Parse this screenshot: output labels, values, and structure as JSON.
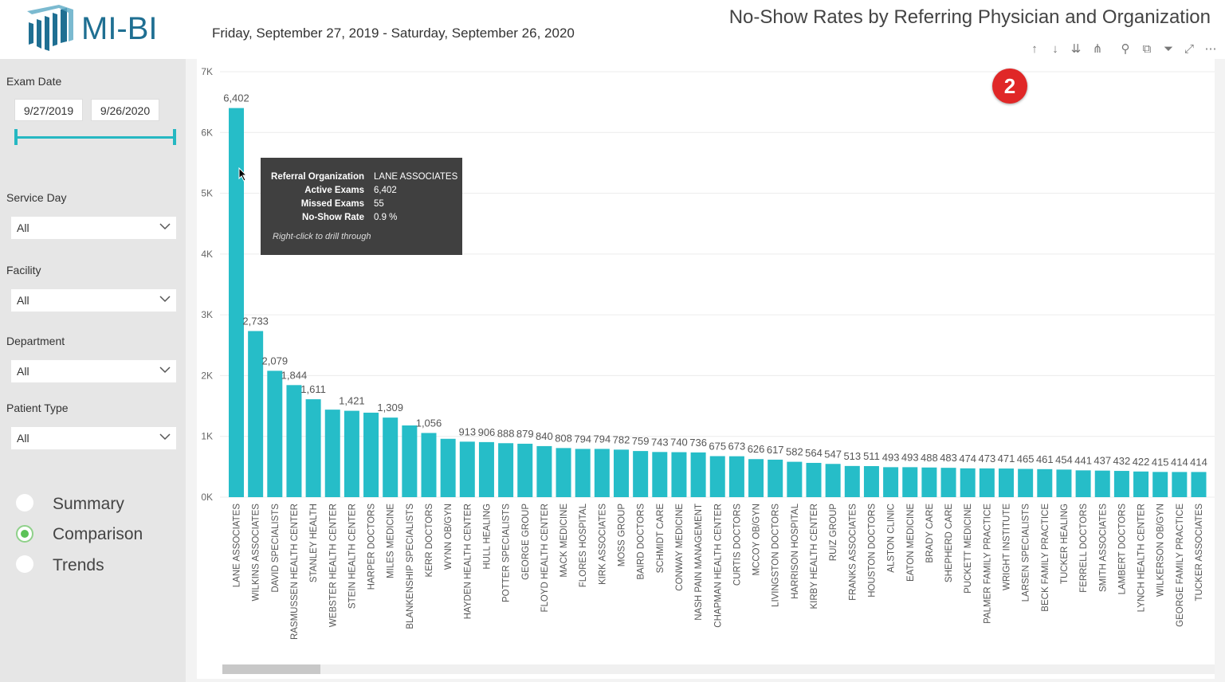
{
  "header": {
    "logo_text": "MI-BI",
    "date_range": "Friday, September 27, 2019 - Saturday, September 26, 2020",
    "title": "No-Show Rates by Referring Physician and Organization"
  },
  "filters": {
    "exam_date": {
      "label": "Exam Date",
      "start": "9/27/2019",
      "end": "9/26/2020"
    },
    "service_day": {
      "label": "Service Day",
      "value": "All"
    },
    "facility": {
      "label": "Facility",
      "value": "All"
    },
    "department": {
      "label": "Department",
      "value": "All"
    },
    "patient_type": {
      "label": "Patient Type",
      "value": "All"
    }
  },
  "views": [
    {
      "label": "Summary",
      "selected": false
    },
    {
      "label": "Comparison",
      "selected": true
    },
    {
      "label": "Trends",
      "selected": false
    }
  ],
  "toolbar_icons": [
    "drill-up-icon",
    "drill-down-icon",
    "expand-all-icon",
    "hierarchy-icon",
    "pin-icon",
    "copy-icon",
    "filter-icon",
    "focus-mode-icon",
    "more-options-icon"
  ],
  "badge": "2",
  "tooltip": {
    "rows": [
      {
        "key": "Referral Organization",
        "value": "LANE ASSOCIATES"
      },
      {
        "key": "Active Exams",
        "value": "6,402"
      },
      {
        "key": "Missed Exams",
        "value": "55"
      },
      {
        "key": "No-Show Rate",
        "value": "0.9 %"
      }
    ],
    "footer": "Right-click to drill through"
  },
  "colors": {
    "bar": "#26bdc8",
    "accent": "#26b8c2",
    "badge": "#e02727"
  },
  "chart_data": {
    "type": "bar",
    "title": "",
    "xlabel": "",
    "ylabel": "",
    "ylim": [
      0,
      7000
    ],
    "yticks": [
      "0K",
      "1K",
      "2K",
      "3K",
      "4K",
      "5K",
      "6K",
      "7K"
    ],
    "grid": true,
    "categories": [
      "LANE ASSOCIATES",
      "WILKINS ASSOCIATES",
      "DAVID SPECIALISTS",
      "RASMUSSEN HEALTH CENTER",
      "STANLEY HEALTH",
      "WEBSTER HEALTH CENTER",
      "STEIN HEALTH CENTER",
      "HARPER DOCTORS",
      "MILES MEDICINE",
      "BLANKENSHIP SPECIALISTS",
      "KERR DOCTORS",
      "WYNN OB/GYN",
      "HAYDEN HEALTH CENTER",
      "HULL HEALING",
      "POTTER SPECIALISTS",
      "GEORGE GROUP",
      "FLOYD HEALTH CENTER",
      "MACK MEDICINE",
      "FLORES HOSPITAL",
      "KIRK ASSOCIATES",
      "MOSS GROUP",
      "BAIRD DOCTORS",
      "SCHMIDT CARE",
      "CONWAY MEDICINE",
      "NASH PAIN MANAGEMENT",
      "CHAPMAN HEALTH CENTER",
      "CURTIS DOCTORS",
      "MCCOY OB/GYN",
      "LIVINGSTON DOCTORS",
      "HARRISON HOSPITAL",
      "KIRBY HEALTH CENTER",
      "RUIZ GROUP",
      "FRANKS ASSOCIATES",
      "HOUSTON DOCTORS",
      "ALSTON CLINIC",
      "EATON MEDICINE",
      "BRADY CARE",
      "SHEPHERD CARE",
      "PUCKETT MEDICINE",
      "PALMER FAMILY PRACTICE",
      "WRIGHT INSTITUTE",
      "LARSEN SPECIALISTS",
      "BECK FAMILY PRACTICE",
      "TUCKER HEALING",
      "FERRELL DOCTORS",
      "SMITH ASSOCIATES",
      "LAMBERT DOCTORS",
      "LYNCH HEALTH CENTER",
      "WILKERSON OB/GYN",
      "GEORGE FAMILY PRACTICE",
      "TUCKER ASSOCIATES"
    ],
    "values": [
      6402,
      2733,
      2079,
      1844,
      1611,
      1440,
      1421,
      1390,
      1309,
      1180,
      1056,
      960,
      913,
      906,
      888,
      879,
      840,
      808,
      794,
      794,
      782,
      759,
      743,
      740,
      736,
      675,
      673,
      626,
      617,
      582,
      564,
      547,
      513,
      511,
      493,
      493,
      488,
      483,
      474,
      473,
      471,
      465,
      461,
      454,
      441,
      437,
      432,
      422,
      415,
      414,
      414
    ],
    "data_labels": [
      "6,402",
      "2,733",
      "2,079",
      "1,844",
      "1,611",
      "",
      "1,421",
      "",
      "1,309",
      "",
      "1,056",
      "",
      "913",
      "906",
      "888",
      "879",
      "840",
      "808",
      "794",
      "794",
      "782",
      "759",
      "743",
      "740",
      "736",
      "675",
      "673",
      "626",
      "617",
      "582",
      "564",
      "547",
      "513",
      "511",
      "493",
      "493",
      "488",
      "483",
      "474",
      "473",
      "471",
      "465",
      "461",
      "454",
      "441",
      "437",
      "432",
      "422",
      "415",
      "414",
      "414"
    ]
  }
}
